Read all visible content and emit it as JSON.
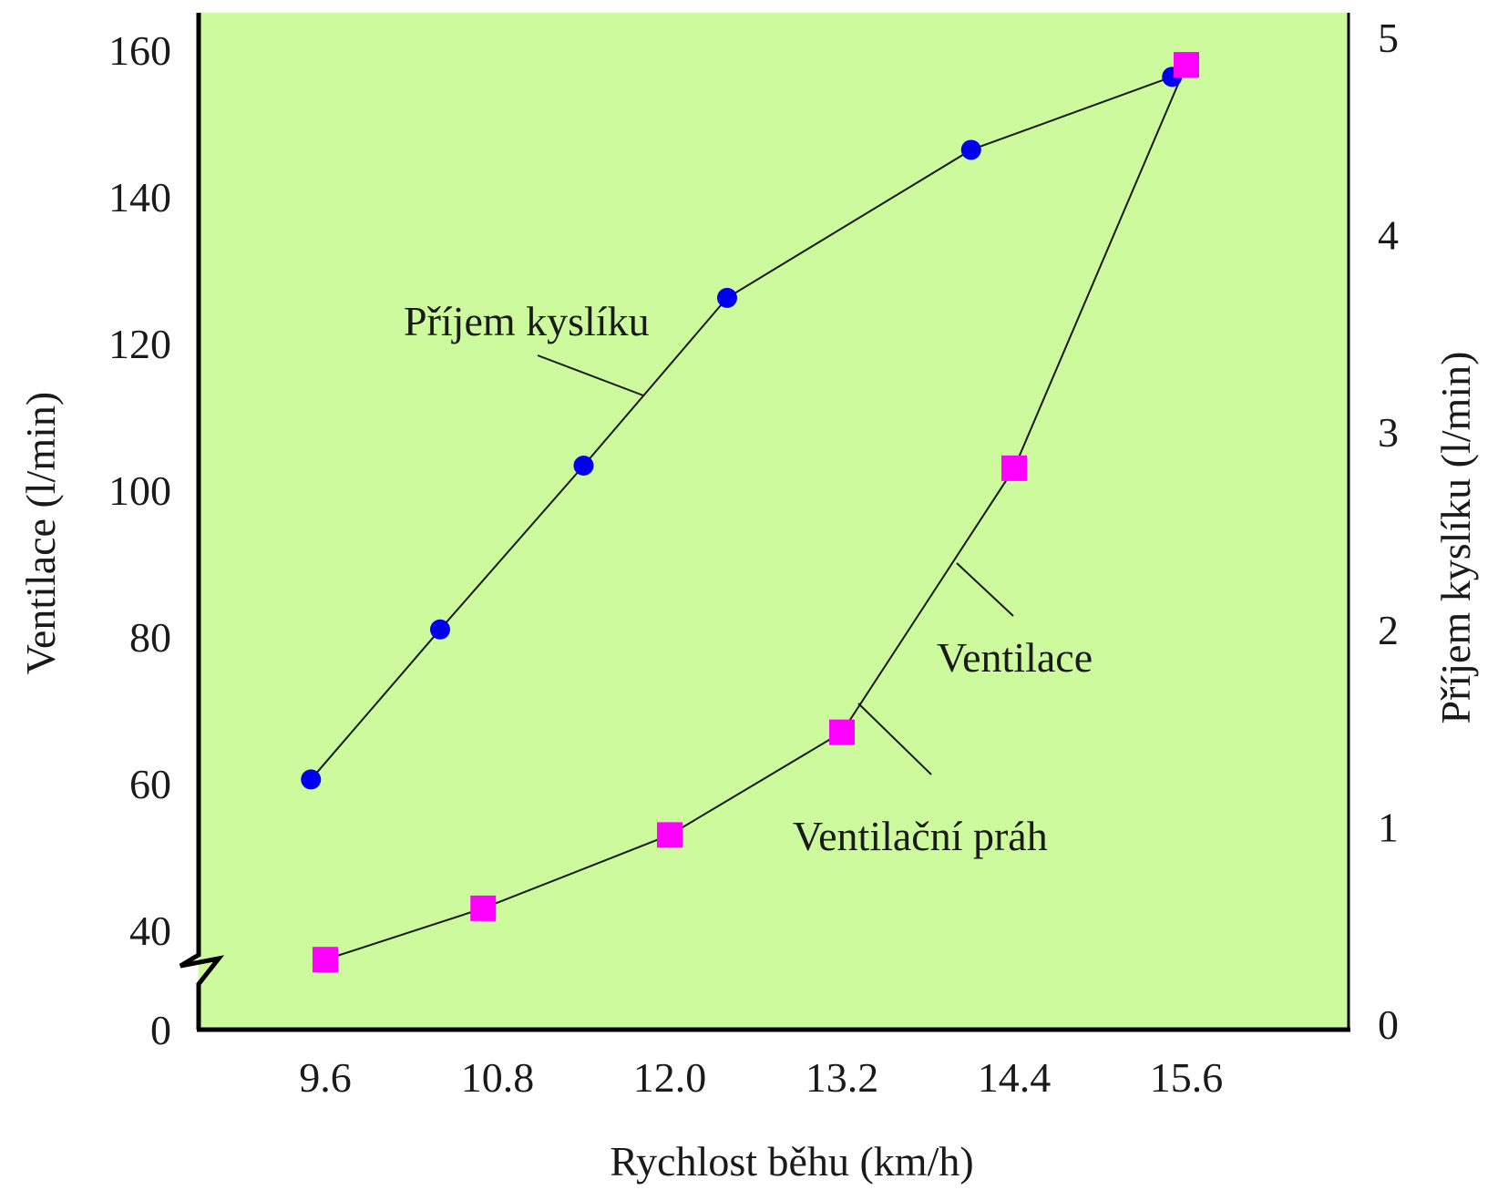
{
  "chart_data": {
    "type": "line",
    "xlabel": "Rychlost běhu (km/h)",
    "ylabel_left": "Ventilace (l/min)",
    "ylabel_right": "Příjem kyslíku (l/min)",
    "x_ticks": [
      "9.6",
      "10.8",
      "12.0",
      "13.2",
      "14.4",
      "15.6"
    ],
    "x_tick_values": [
      9.6,
      10.8,
      12.0,
      13.2,
      14.4,
      15.6
    ],
    "xlim": [
      8.5,
      16.5
    ],
    "y_left_ticks": [
      "0",
      "40",
      "60",
      "80",
      "100",
      "120",
      "140",
      "160"
    ],
    "y_left_tick_values": [
      20,
      40,
      60,
      80,
      100,
      120,
      140,
      160
    ],
    "y_left_lim": [
      20,
      165
    ],
    "y_left_axis_break": true,
    "y_right_ticks": [
      "0",
      "1",
      "2",
      "3",
      "4",
      "5"
    ],
    "y_right_tick_values": [
      0,
      1,
      2,
      3,
      4,
      5
    ],
    "y_right_lim": [
      0,
      5.2
    ],
    "series": [
      {
        "name": "Příjem kyslíku",
        "axis": "right",
        "marker": "circle",
        "color": "#0000ee",
        "x": [
          9.5,
          10.4,
          11.4,
          12.4,
          14.1,
          15.5
        ],
        "y": [
          1.24,
          2.0,
          2.83,
          3.68,
          4.43,
          4.8
        ]
      },
      {
        "name": "Ventilace",
        "axis": "left",
        "marker": "square",
        "color": "#ff00ff",
        "x": [
          9.6,
          10.7,
          12.0,
          13.2,
          14.4,
          15.6
        ],
        "y": [
          36,
          43,
          53,
          67,
          103,
          158
        ]
      }
    ],
    "annotations": [
      {
        "text": "Příjem kyslíku",
        "target": "Příjem kyslíku"
      },
      {
        "text": "Ventilace",
        "target": "Ventilace"
      },
      {
        "text": "Ventilační práh",
        "target": "Ventilace"
      }
    ],
    "colors": {
      "plot_background": "#ccfa9d",
      "line": "#1a1a1a",
      "frame": "#000000"
    },
    "grid": false,
    "legend": "none"
  }
}
